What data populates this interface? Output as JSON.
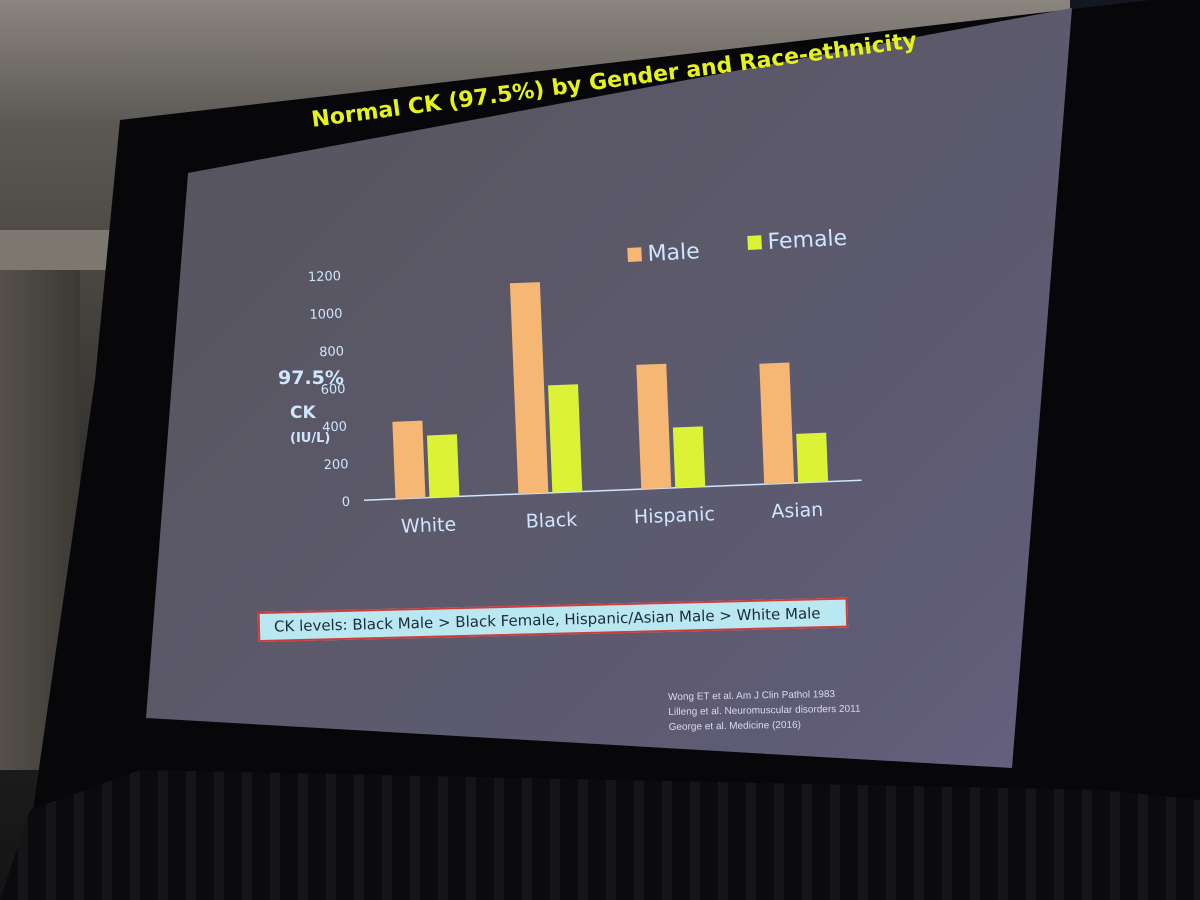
{
  "colors": {
    "male": "#f6b774",
    "female": "#dcf236",
    "title": "#e6f21c",
    "axis_text": "#cfe6ff",
    "summary_bg": "#b9e7f2",
    "summary_border": "#d23a3a"
  },
  "slide": {
    "title": "Normal CK (97.5%) by Gender and Race-ethnicity",
    "summary": "CK levels:  Black Male > Black Female, Hispanic/Asian Male > White Male",
    "references": [
      "Wong ET et al. Am J Clin Pathol 1983",
      "Lilleng et al. Neuromuscular disorders 2011",
      "George et al. Medicine (2016)"
    ]
  },
  "chart_data": {
    "type": "bar",
    "title": "Normal CK (97.5%) by Gender and Race-ethnicity",
    "ylabel_lines": [
      "97.5%",
      "CK",
      "(IU/L)"
    ],
    "categories": [
      "White",
      "Black",
      "Hispanic",
      "Asian"
    ],
    "series": [
      {
        "name": "Male",
        "values": [
          410,
          1120,
          660,
          640
        ]
      },
      {
        "name": "Female",
        "values": [
          330,
          570,
          320,
          260
        ]
      }
    ],
    "yticks": [
      0,
      200,
      400,
      600,
      800,
      1000,
      1200
    ],
    "ylim": [
      0,
      1200
    ],
    "legend": "top-right",
    "grid": false
  }
}
